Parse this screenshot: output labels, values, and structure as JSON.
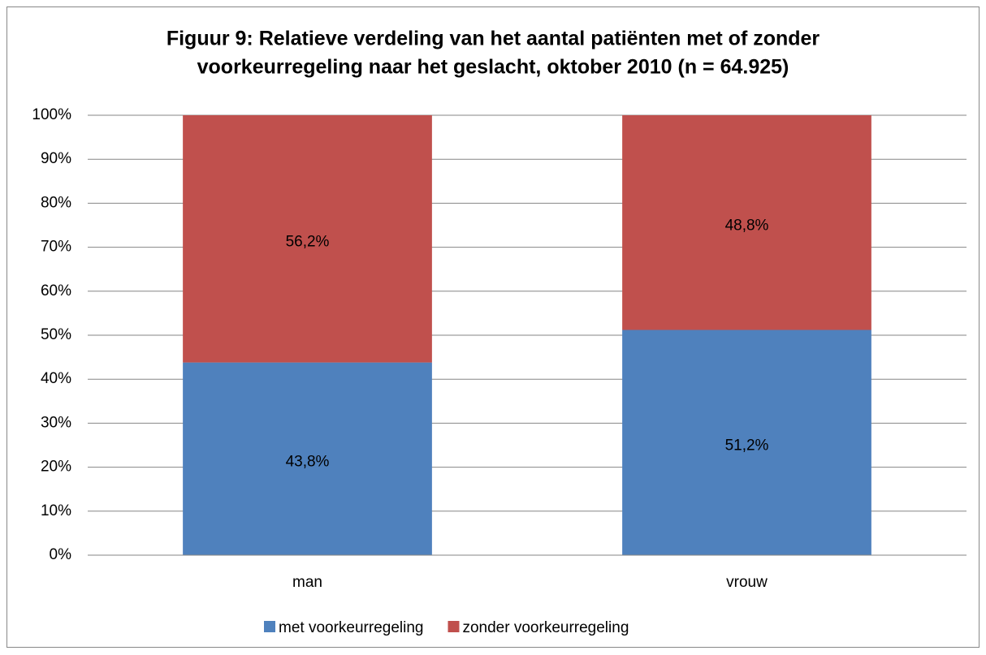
{
  "chart_data": {
    "type": "stacked_bar",
    "title": [
      "Figuur 9: Relatieve verdeling van het aantal patiënten met of zonder",
      "voorkeurregeling naar het geslacht, oktober 2010 (n = 64.925)"
    ],
    "categories": [
      "man",
      "vrouw"
    ],
    "series": [
      {
        "name": "met voorkeurregeling",
        "color": "#4f81bd",
        "values": [
          43.8,
          51.2
        ],
        "value_labels": [
          "43,8%",
          "51,2%"
        ]
      },
      {
        "name": "zonder voorkeurregeling",
        "color": "#c0504d",
        "values": [
          56.2,
          48.8
        ],
        "value_labels": [
          "56,2%",
          "48,8%"
        ]
      }
    ],
    "ylim": [
      0,
      100
    ],
    "yticks": [
      {
        "value": 0,
        "label": "0%"
      },
      {
        "value": 10,
        "label": "10%"
      },
      {
        "value": 20,
        "label": "20%"
      },
      {
        "value": 30,
        "label": "30%"
      },
      {
        "value": 40,
        "label": "40%"
      },
      {
        "value": 50,
        "label": "50%"
      },
      {
        "value": 60,
        "label": "60%"
      },
      {
        "value": 70,
        "label": "70%"
      },
      {
        "value": 80,
        "label": "80%"
      },
      {
        "value": 90,
        "label": "90%"
      },
      {
        "value": 100,
        "label": "100%"
      }
    ],
    "grid": true,
    "legend": "bottom"
  }
}
